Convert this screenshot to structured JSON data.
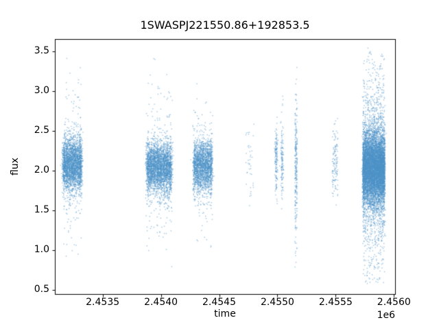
{
  "chart_data": {
    "type": "scatter",
    "title": "1SWASPJ221550.86+192853.5",
    "xlabel": "time",
    "ylabel": "flux",
    "x_offset_text": "1e6",
    "xlim": [
      2453090,
      2456010
    ],
    "ylim": [
      0.448,
      3.655
    ],
    "xticks": [
      {
        "value": 2453500,
        "label": "2.4535"
      },
      {
        "value": 2454000,
        "label": "2.4540"
      },
      {
        "value": 2454500,
        "label": "2.4545"
      },
      {
        "value": 2455000,
        "label": "2.4550"
      },
      {
        "value": 2455500,
        "label": "2.4555"
      },
      {
        "value": 2456000,
        "label": "2.4560"
      }
    ],
    "yticks": [
      {
        "value": 0.5,
        "label": "0.5"
      },
      {
        "value": 1.0,
        "label": "1.0"
      },
      {
        "value": 1.5,
        "label": "1.5"
      },
      {
        "value": 2.0,
        "label": "2.0"
      },
      {
        "value": 2.5,
        "label": "2.5"
      },
      {
        "value": 3.0,
        "label": "3.0"
      },
      {
        "value": 3.5,
        "label": "3.5"
      }
    ],
    "marker_color": "#4e94c8",
    "marker_alpha": 0.55,
    "marker_size": 1.4,
    "spine_color": "#000000",
    "background": "#ffffff",
    "grid": false,
    "legend": null,
    "seed": 42,
    "clusters": [
      {
        "x_min": 2453170,
        "x_max": 2453310,
        "count": 2800,
        "stripes": 7,
        "stripe_jitter": 9,
        "y_mean": 2.08,
        "y_std": 0.17,
        "outlier_frac": 0.08,
        "outlier_std": 0.5,
        "y_min": 0.9,
        "y_max": 3.52
      },
      {
        "x_min": 2453890,
        "x_max": 2454080,
        "count": 3200,
        "stripes": 8,
        "stripe_jitter": 9,
        "y_mean": 2.04,
        "y_std": 0.16,
        "outlier_frac": 0.08,
        "outlier_std": 0.5,
        "y_min": 0.57,
        "y_max": 3.47
      },
      {
        "x_min": 2454290,
        "x_max": 2454430,
        "count": 2200,
        "stripes": 7,
        "stripe_jitter": 8,
        "y_mean": 2.05,
        "y_std": 0.16,
        "outlier_frac": 0.07,
        "outlier_std": 0.45,
        "y_min": 1.0,
        "y_max": 3.3
      },
      {
        "x_min": 2454730,
        "x_max": 2454800,
        "count": 40,
        "stripes": 0,
        "stripe_jitter": 0,
        "y_mean": 2.05,
        "y_std": 0.25,
        "outlier_frac": 0.1,
        "outlier_std": 0.7,
        "y_min": 1.55,
        "y_max": 3.4
      },
      {
        "x_min": 2454990,
        "x_max": 2455040,
        "count": 280,
        "stripes": 2,
        "stripe_jitter": 6,
        "y_mean": 2.15,
        "y_std": 0.25,
        "outlier_frac": 0.1,
        "outlier_std": 0.45,
        "y_min": 1.5,
        "y_max": 3.0
      },
      {
        "x_min": 2455150,
        "x_max": 2455170,
        "count": 260,
        "stripes": 0,
        "stripe_jitter": 0,
        "y_mean": 2.1,
        "y_std": 0.4,
        "outlier_frac": 0.15,
        "outlier_std": 0.8,
        "y_min": 0.75,
        "y_max": 3.45
      },
      {
        "x_min": 2455470,
        "x_max": 2455520,
        "count": 130,
        "stripes": 0,
        "stripe_jitter": 0,
        "y_mean": 2.1,
        "y_std": 0.22,
        "outlier_frac": 0.08,
        "outlier_std": 0.4,
        "y_min": 1.55,
        "y_max": 2.72
      },
      {
        "x_min": 2455740,
        "x_max": 2455915,
        "count": 9000,
        "stripes": 12,
        "stripe_jitter": 5,
        "y_mean": 2.03,
        "y_std": 0.22,
        "outlier_frac": 0.2,
        "outlier_std": 0.65,
        "y_min": 0.55,
        "y_max": 3.55
      }
    ]
  }
}
